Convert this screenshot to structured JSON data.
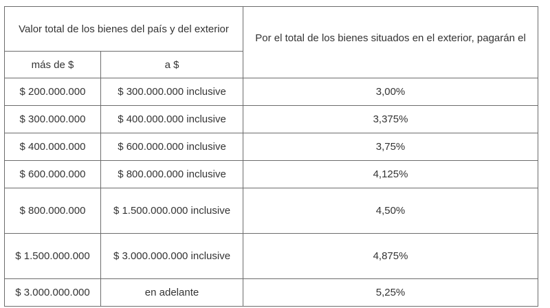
{
  "table": {
    "header": {
      "group_label": "Valor total de los bienes del país y del exterior",
      "col_from": "más de $",
      "col_to": "a $",
      "col_rate": "Por el total de los bienes situados en el exterior, pagarán el"
    },
    "rows": [
      {
        "from": "$ 200.000.000",
        "to": "$ 300.000.000 inclusive",
        "rate": "3,00%"
      },
      {
        "from": "$ 300.000.000",
        "to": "$ 400.000.000 inclusive",
        "rate": "3,375%"
      },
      {
        "from": "$ 400.000.000",
        "to": "$ 600.000.000 inclusive",
        "rate": "3,75%"
      },
      {
        "from": "$ 600.000.000",
        "to": "$ 800.000.000 inclusive",
        "rate": "4,125%"
      },
      {
        "from": "$ 800.000.000",
        "to": "$ 1.500.000.000 inclusive",
        "rate": "4,50%"
      },
      {
        "from": "$ 1.500.000.000",
        "to": "$ 3.000.000.000 inclusive",
        "rate": "4,875%"
      },
      {
        "from": "$ 3.000.000.000",
        "to": "en adelante",
        "rate": "5,25%"
      }
    ]
  }
}
